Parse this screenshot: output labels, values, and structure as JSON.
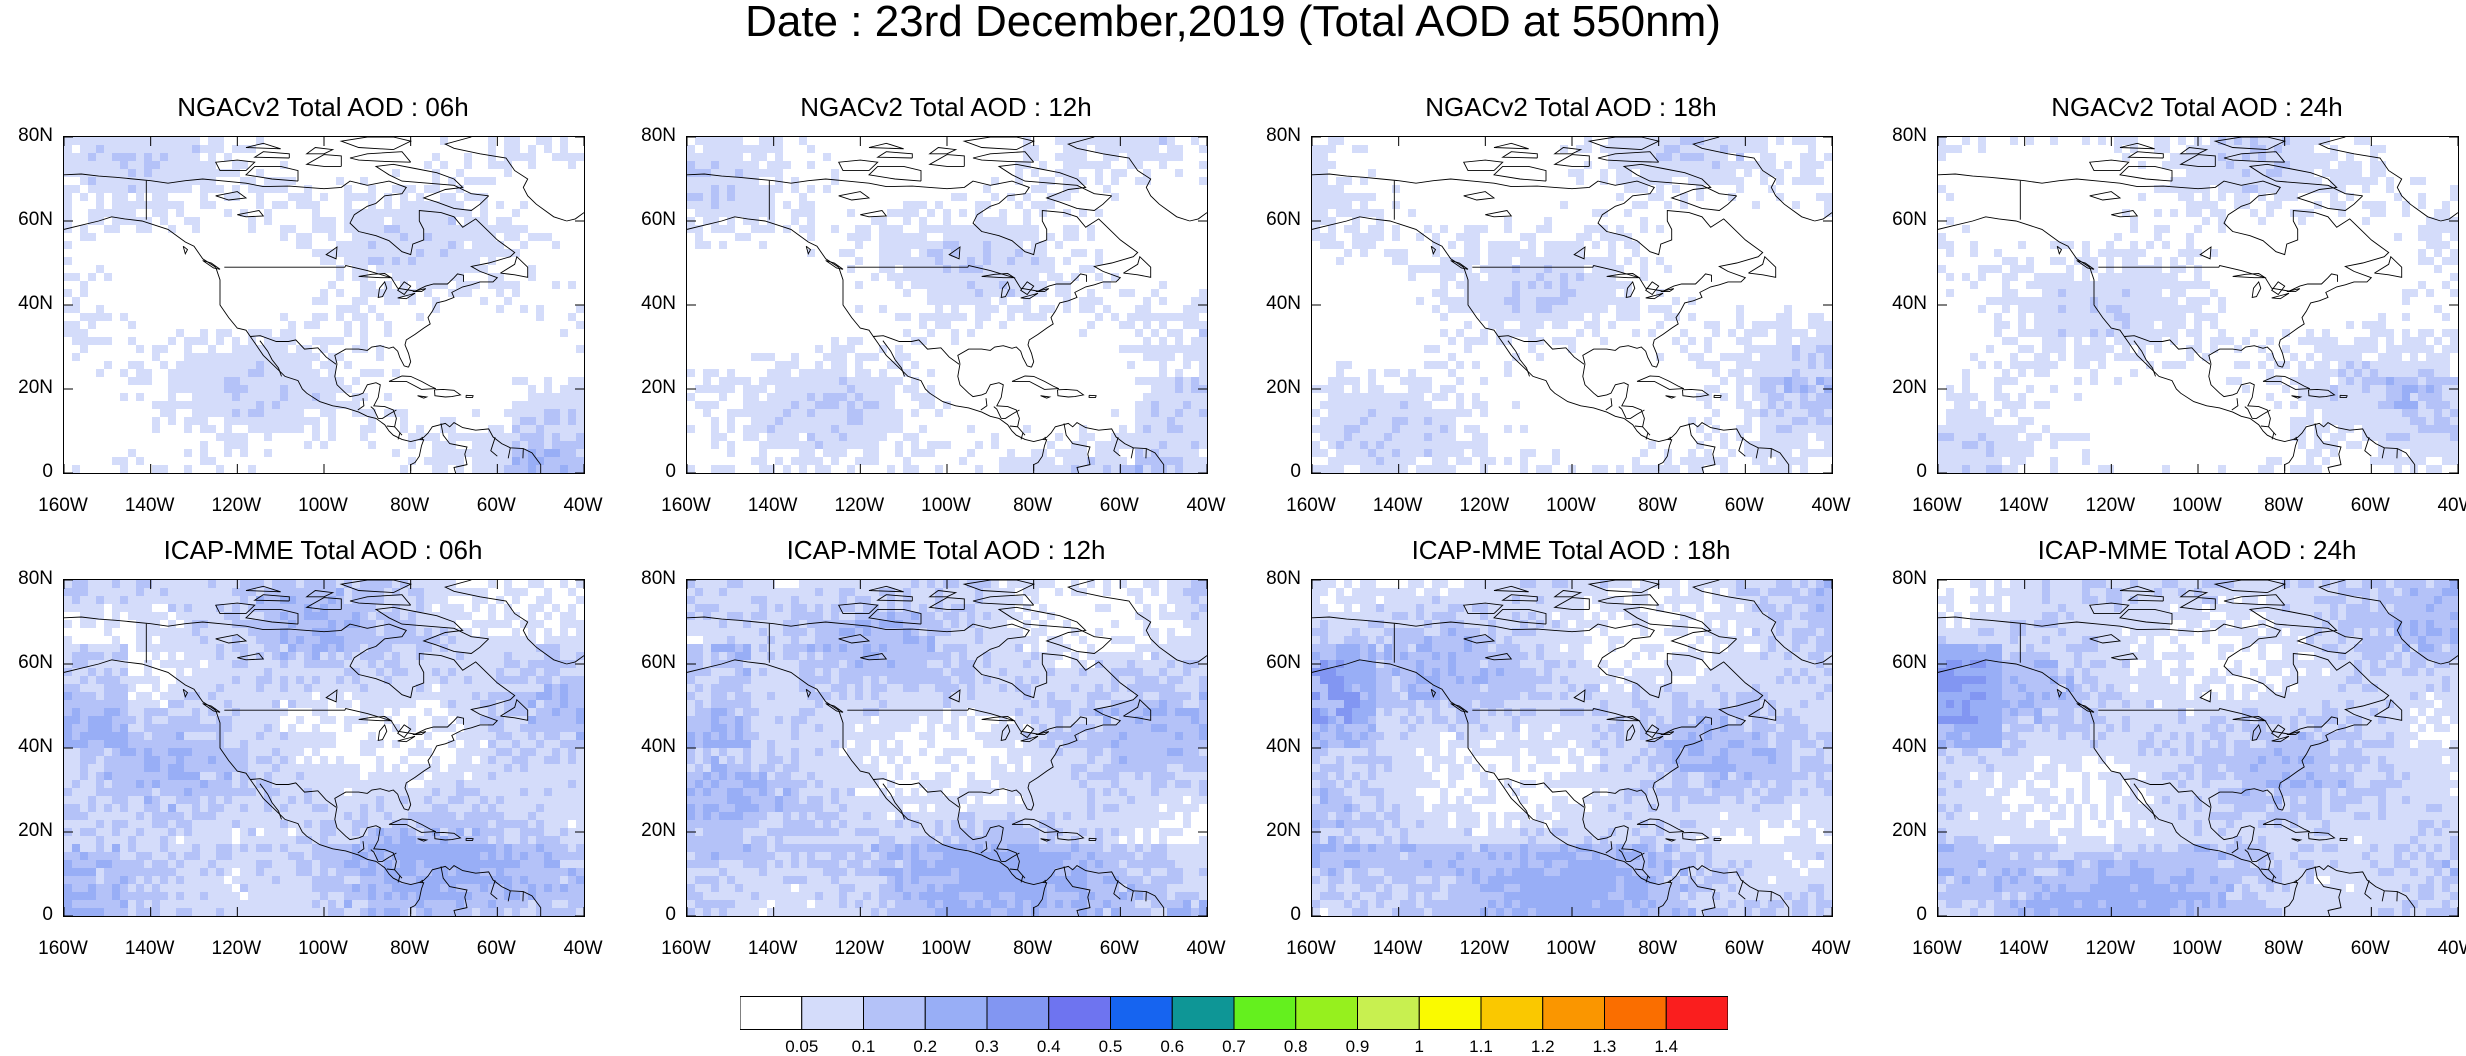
{
  "figure": {
    "title": "Date : 23rd December,2019 (Total AOD at 550nm)"
  },
  "panels": [
    {
      "title": "NGACv2 Total AOD : 06h",
      "model": "NGACv2",
      "lead": "06h"
    },
    {
      "title": "NGACv2 Total AOD : 12h",
      "model": "NGACv2",
      "lead": "12h"
    },
    {
      "title": "NGACv2 Total AOD : 18h",
      "model": "NGACv2",
      "lead": "18h"
    },
    {
      "title": "NGACv2 Total AOD : 24h",
      "model": "NGACv2",
      "lead": "24h"
    },
    {
      "title": "ICAP-MME Total AOD : 06h",
      "model": "ICAP-MME",
      "lead": "06h"
    },
    {
      "title": "ICAP-MME Total AOD : 12h",
      "model": "ICAP-MME",
      "lead": "12h"
    },
    {
      "title": "ICAP-MME Total AOD : 18h",
      "model": "ICAP-MME",
      "lead": "18h"
    },
    {
      "title": "ICAP-MME Total AOD : 24h",
      "model": "ICAP-MME",
      "lead": "24h"
    }
  ],
  "axes": {
    "lon_ticks": [
      "160W",
      "140W",
      "120W",
      "100W",
      "80W",
      "60W",
      "40W"
    ],
    "lat_ticks": [
      "80N",
      "60N",
      "40N",
      "20N",
      "0"
    ],
    "lon_range": [
      -160,
      -40
    ],
    "lat_range": [
      0,
      80
    ]
  },
  "colorbar": {
    "levels": [
      "0.05",
      "0.1",
      "0.2",
      "0.3",
      "0.4",
      "0.5",
      "0.6",
      "0.7",
      "0.8",
      "0.9",
      "1",
      "1.1",
      "1.2",
      "1.3",
      "1.4"
    ],
    "colors": [
      "#ffffff",
      "#d4dcfa",
      "#b4c2f8",
      "#98aef6",
      "#8296f2",
      "#6e74f0",
      "#1664f0",
      "#0e9696",
      "#64f01e",
      "#96f01e",
      "#c8f050",
      "#fafa00",
      "#fac800",
      "#fa9600",
      "#fa6e00",
      "#fa1e1e"
    ]
  }
}
